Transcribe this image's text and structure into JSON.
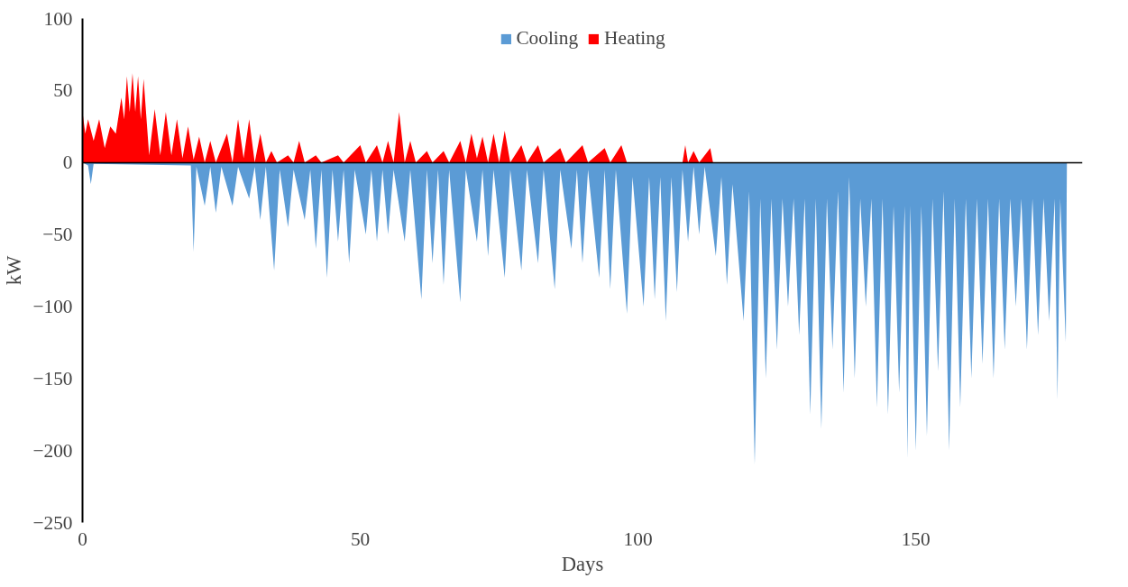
{
  "chart_data": {
    "type": "area",
    "xlabel": "Days",
    "ylabel": "kW",
    "xlim": [
      0,
      180
    ],
    "xticks": [
      0,
      50,
      100,
      150
    ],
    "ylim": [
      -250,
      100
    ],
    "yticks": [
      -250,
      -200,
      -150,
      -100,
      -50,
      0,
      50,
      100
    ],
    "legend": "top",
    "series": [
      {
        "name": "Cooling",
        "color": "#5b9bd5",
        "x": [
          0,
          1,
          1.5,
          2,
          19.5,
          20,
          20.5,
          22,
          23,
          24,
          25,
          27,
          28,
          30,
          31,
          32,
          33,
          34.5,
          35.5,
          37,
          38,
          40,
          41,
          42,
          43,
          44,
          45,
          46,
          47,
          48,
          49,
          51,
          52,
          53,
          54,
          55,
          56,
          58,
          59,
          61,
          62,
          63,
          64,
          65,
          66,
          68,
          69,
          71,
          72,
          73,
          74,
          76,
          77,
          79,
          80,
          82,
          83,
          85,
          86,
          88,
          89,
          90,
          91,
          93,
          94,
          95,
          96,
          98,
          99,
          101,
          102,
          103,
          104,
          105,
          106,
          107,
          108,
          109,
          110,
          111,
          112,
          114,
          115,
          116,
          117,
          119,
          120,
          121,
          122,
          123,
          124,
          125,
          126,
          127,
          128,
          129,
          130,
          131,
          132,
          133,
          134,
          135,
          136,
          137,
          138,
          139,
          140,
          141,
          142,
          143,
          144,
          145,
          146,
          147,
          148,
          148.5,
          149,
          150,
          151,
          152,
          153,
          154,
          155,
          156,
          157,
          158,
          159,
          160,
          161,
          162,
          163,
          164,
          165,
          166,
          167,
          168,
          169,
          170,
          171,
          172,
          173,
          174,
          175,
          175.5,
          176,
          177,
          177.2
        ],
        "values": [
          0,
          -2,
          -15,
          -1,
          -2,
          -62,
          -3,
          -30,
          -3,
          -35,
          -3,
          -30,
          -3,
          -25,
          -3,
          -40,
          -3,
          -75,
          -5,
          -45,
          -5,
          -40,
          -5,
          -60,
          -5,
          -80,
          -5,
          -55,
          -5,
          -70,
          -5,
          -50,
          -5,
          -55,
          -5,
          -50,
          -5,
          -55,
          -5,
          -95,
          -5,
          -70,
          -5,
          -85,
          -5,
          -97,
          -5,
          -55,
          -5,
          -65,
          -5,
          -80,
          -5,
          -75,
          -5,
          -70,
          -5,
          -88,
          -5,
          -60,
          -5,
          -70,
          -5,
          -80,
          -5,
          -88,
          -5,
          -105,
          -10,
          -100,
          -10,
          -95,
          -10,
          -110,
          -10,
          -90,
          -5,
          -55,
          -3,
          -50,
          -3,
          -65,
          -10,
          -85,
          -15,
          -110,
          -20,
          -210,
          -25,
          -150,
          -25,
          -130,
          -25,
          -100,
          -25,
          -120,
          -25,
          -175,
          -25,
          -185,
          -25,
          -130,
          -20,
          -160,
          -10,
          -150,
          -25,
          -100,
          -25,
          -170,
          -25,
          -175,
          -30,
          -160,
          -30,
          -205,
          -30,
          -200,
          -30,
          -190,
          -25,
          -145,
          -20,
          -200,
          -25,
          -170,
          -25,
          -150,
          -25,
          -140,
          -25,
          -150,
          -25,
          -130,
          -25,
          -100,
          -25,
          -130,
          -25,
          -120,
          -25,
          -110,
          -25,
          -165,
          -25,
          -125,
          0
        ]
      },
      {
        "name": "Heating",
        "color": "#ff0000",
        "x": [
          0,
          0,
          0.5,
          1,
          2,
          3,
          4,
          5,
          6,
          7,
          7.5,
          8,
          8.5,
          9,
          9.5,
          10,
          10.5,
          11,
          12,
          13,
          14,
          15,
          16,
          17,
          18,
          19,
          20,
          21,
          22,
          23,
          24,
          26,
          27,
          28,
          29,
          30,
          31,
          32,
          33,
          34,
          35,
          37,
          38,
          39,
          40,
          42,
          43,
          46,
          47,
          50,
          51,
          53,
          54,
          55,
          56,
          57,
          58,
          59,
          60,
          62,
          63,
          65,
          66,
          68,
          69,
          70,
          71,
          72,
          73,
          74,
          75,
          76,
          77,
          79,
          80,
          82,
          83,
          86,
          87,
          90,
          91,
          94,
          95,
          97,
          98,
          108,
          108.5,
          109,
          110,
          111,
          113,
          113.5
        ],
        "values": [
          0,
          35,
          20,
          30,
          15,
          30,
          10,
          25,
          20,
          45,
          30,
          60,
          35,
          62,
          35,
          60,
          30,
          58,
          5,
          37,
          5,
          35,
          5,
          30,
          3,
          25,
          2,
          18,
          0,
          15,
          0,
          20,
          0,
          30,
          3,
          30,
          0,
          20,
          0,
          8,
          0,
          5,
          0,
          15,
          0,
          5,
          0,
          5,
          0,
          12,
          0,
          12,
          0,
          15,
          0,
          35,
          0,
          15,
          0,
          8,
          0,
          8,
          0,
          15,
          0,
          20,
          3,
          18,
          0,
          20,
          0,
          22,
          0,
          12,
          0,
          12,
          0,
          10,
          0,
          12,
          0,
          10,
          0,
          12,
          0,
          0,
          12,
          0,
          8,
          0,
          10,
          0
        ]
      }
    ]
  }
}
